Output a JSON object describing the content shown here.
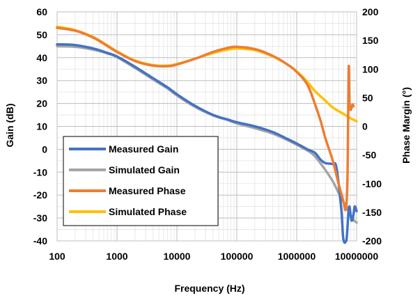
{
  "chart_data": {
    "type": "line",
    "xlabel": "Frequency (Hz)",
    "ylabel_left": "Gain (dB)",
    "ylabel_right": "Phase Margin (°)",
    "x_scale": "log",
    "xlim": [
      100,
      10000000
    ],
    "ylim_left": [
      -40,
      60
    ],
    "ylim_right": [
      -200,
      200
    ],
    "x_ticks": [
      {
        "value": 100,
        "label": "100"
      },
      {
        "value": 1000,
        "label": "1000"
      },
      {
        "value": 10000,
        "label": "10000"
      },
      {
        "value": 100000,
        "label": "100000"
      },
      {
        "value": 1000000,
        "label": "1000000"
      },
      {
        "value": 10000000,
        "label": "10000000"
      }
    ],
    "y_ticks_left": [
      "60",
      "50",
      "40",
      "30",
      "20",
      "10",
      "0",
      "-10",
      "-20",
      "-30",
      "-40"
    ],
    "y_ticks_right": [
      "200",
      "150",
      "100",
      "50",
      "0",
      "-50",
      "-100",
      "-150",
      "-200"
    ],
    "grid": true,
    "legend_position": "bottom-left",
    "series": [
      {
        "name": "Measured Gain",
        "axis": "left",
        "color": "#4472C4",
        "points": [
          [
            100,
            45.8
          ],
          [
            200,
            45.5
          ],
          [
            400,
            44
          ],
          [
            700,
            42
          ],
          [
            1000,
            40.5
          ],
          [
            2000,
            36
          ],
          [
            4000,
            31
          ],
          [
            7000,
            27
          ],
          [
            10000,
            24
          ],
          [
            20000,
            19
          ],
          [
            40000,
            15
          ],
          [
            70000,
            13
          ],
          [
            100000,
            11.8
          ],
          [
            200000,
            10
          ],
          [
            400000,
            7.5
          ],
          [
            700000,
            4.5
          ],
          [
            1000000,
            2.5
          ],
          [
            1500000,
            0
          ],
          [
            2000000,
            -1.5
          ],
          [
            2500000,
            -4.5
          ],
          [
            3000000,
            -6
          ],
          [
            4000000,
            -6.5
          ],
          [
            4600000,
            -8
          ],
          [
            5500000,
            -25
          ],
          [
            6000000,
            -39
          ],
          [
            6700000,
            -40
          ],
          [
            7000000,
            -35
          ],
          [
            7500000,
            -25
          ],
          [
            8200000,
            -31
          ],
          [
            8800000,
            -29
          ],
          [
            9300000,
            -25
          ],
          [
            10000000,
            -27
          ]
        ]
      },
      {
        "name": "Simulated Gain",
        "axis": "left",
        "color": "#A5A5A5",
        "points": [
          [
            100,
            45
          ],
          [
            200,
            44.7
          ],
          [
            400,
            43.5
          ],
          [
            700,
            41.8
          ],
          [
            1000,
            40.2
          ],
          [
            2000,
            35.5
          ],
          [
            4000,
            30.5
          ],
          [
            7000,
            26.5
          ],
          [
            10000,
            23.5
          ],
          [
            20000,
            18.5
          ],
          [
            40000,
            14.8
          ],
          [
            70000,
            12.8
          ],
          [
            100000,
            11.3
          ],
          [
            200000,
            9.2
          ],
          [
            400000,
            6.8
          ],
          [
            700000,
            4
          ],
          [
            1000000,
            2
          ],
          [
            1500000,
            -0.5
          ],
          [
            2000000,
            -3
          ],
          [
            3000000,
            -9
          ],
          [
            4000000,
            -14
          ],
          [
            5000000,
            -19
          ],
          [
            6000000,
            -23
          ],
          [
            7000000,
            -26
          ],
          [
            8000000,
            -29
          ],
          [
            9000000,
            -31
          ],
          [
            10000000,
            -32
          ]
        ]
      },
      {
        "name": "Measured Phase",
        "axis": "right",
        "color": "#ED7D31",
        "points": [
          [
            100,
            172
          ],
          [
            200,
            167
          ],
          [
            400,
            155
          ],
          [
            700,
            140
          ],
          [
            1000,
            130
          ],
          [
            2000,
            114
          ],
          [
            4000,
            106
          ],
          [
            7000,
            105
          ],
          [
            10000,
            108
          ],
          [
            20000,
            118
          ],
          [
            40000,
            130
          ],
          [
            70000,
            137
          ],
          [
            100000,
            139
          ],
          [
            200000,
            135
          ],
          [
            400000,
            123
          ],
          [
            700000,
            108
          ],
          [
            1000000,
            95
          ],
          [
            1500000,
            73
          ],
          [
            2000000,
            40
          ],
          [
            2500000,
            10
          ],
          [
            3000000,
            -20
          ],
          [
            4000000,
            -60
          ],
          [
            5000000,
            -100
          ],
          [
            6000000,
            -130
          ],
          [
            6600000,
            -145
          ],
          [
            7000000,
            -100
          ],
          [
            7200000,
            0
          ],
          [
            7400000,
            105
          ],
          [
            7600000,
            40
          ],
          [
            7800000,
            30
          ],
          [
            8100000,
            30
          ],
          [
            8500000,
            38
          ],
          [
            8900000,
            35
          ]
        ]
      },
      {
        "name": "Simulated Phase",
        "axis": "right",
        "color": "#FFC000",
        "points": [
          [
            100,
            174
          ],
          [
            200,
            168
          ],
          [
            400,
            156
          ],
          [
            700,
            141
          ],
          [
            1000,
            131
          ],
          [
            2000,
            115
          ],
          [
            4000,
            107
          ],
          [
            7000,
            106
          ],
          [
            10000,
            109
          ],
          [
            20000,
            118
          ],
          [
            40000,
            128
          ],
          [
            70000,
            134
          ],
          [
            100000,
            136
          ],
          [
            200000,
            133
          ],
          [
            400000,
            122
          ],
          [
            700000,
            108
          ],
          [
            1000000,
            96
          ],
          [
            1500000,
            78
          ],
          [
            2000000,
            62
          ],
          [
            3000000,
            45
          ],
          [
            4000000,
            33
          ],
          [
            6000000,
            22
          ],
          [
            8000000,
            14
          ],
          [
            10000000,
            9
          ]
        ]
      }
    ]
  }
}
